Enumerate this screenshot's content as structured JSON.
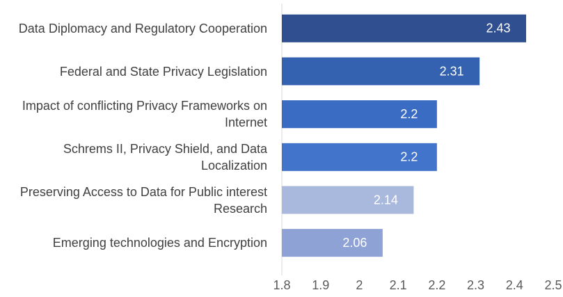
{
  "chart_data": {
    "type": "bar",
    "orientation": "horizontal",
    "categories": [
      "Data Diplomacy and Regulatory Cooperation",
      "Federal and State Privacy Legislation",
      "Impact of conflicting Privacy Frameworks on Internet",
      "Schrems II, Privacy Shield, and Data Localization",
      "Preserving Access to Data for Public interest Research",
      "Emerging technologies and Encryption"
    ],
    "values": [
      2.43,
      2.31,
      2.2,
      2.2,
      2.14,
      2.06
    ],
    "colors": [
      "#2f4f91",
      "#3462b0",
      "#3a6cc4",
      "#4374cc",
      "#a9b9de",
      "#8fa2d6"
    ],
    "xlim": [
      1.8,
      2.5
    ],
    "xticks": [
      1.8,
      1.9,
      2,
      2.1,
      2.2,
      2.3,
      2.4,
      2.5
    ],
    "grid": false
  }
}
